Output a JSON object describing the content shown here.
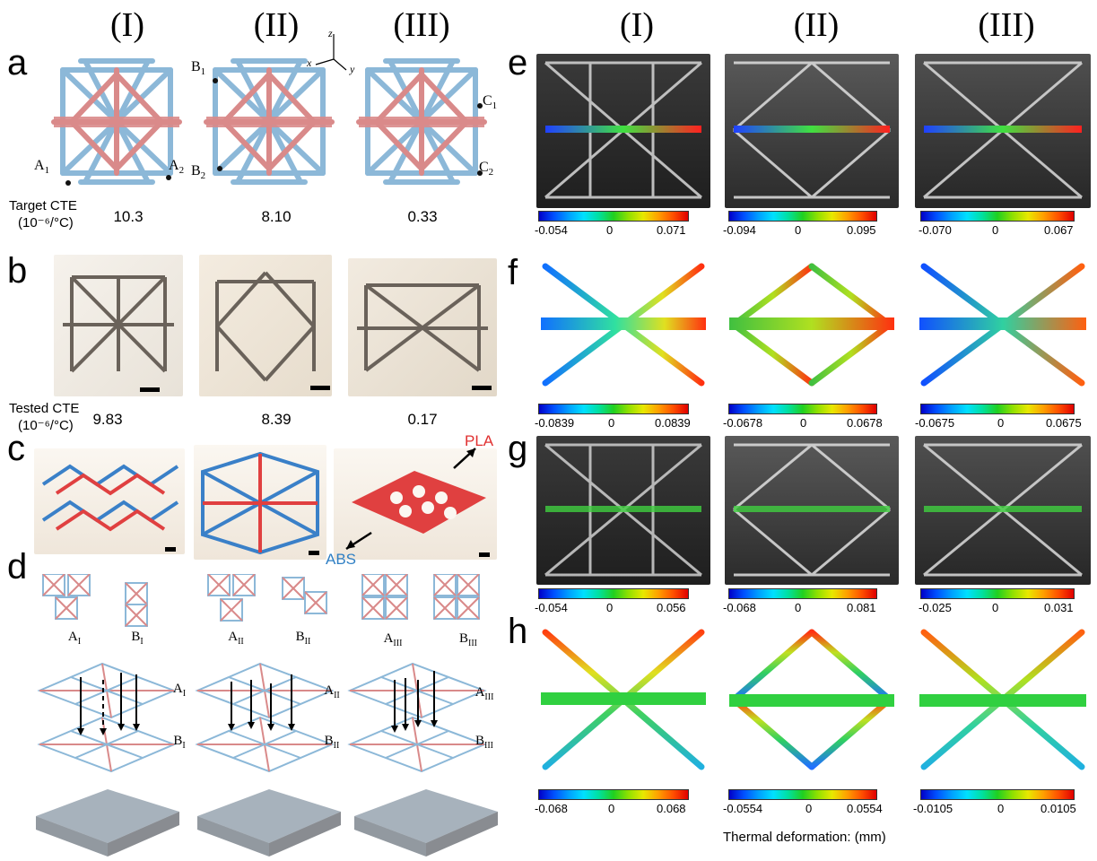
{
  "headers_left": [
    "(I)",
    "(II)",
    "(III)"
  ],
  "headers_right": [
    "(I)",
    "(II)",
    "(III)"
  ],
  "panel_labels": {
    "a": "a",
    "b": "b",
    "c": "c",
    "d": "d",
    "e": "e",
    "f": "f",
    "g": "g",
    "h": "h"
  },
  "axes": {
    "z": "z",
    "x": "x",
    "y": "y"
  },
  "node_labels": {
    "A1": "A",
    "A2": "A",
    "B1": "B",
    "B2": "B",
    "C1": "C",
    "C2": "C",
    "sub1": "1",
    "sub2": "2"
  },
  "target_cte": {
    "label": "Target CTE",
    "unit": "(10⁻⁶/°C)",
    "values": [
      "10.3",
      "8.10",
      "0.33"
    ]
  },
  "tested_cte": {
    "label": "Tested CTE",
    "unit": "(10⁻⁶/°C)",
    "values": [
      "9.83",
      "8.39",
      "0.17"
    ]
  },
  "materials": {
    "pla": "PLA",
    "abs": "ABS"
  },
  "d_labels": {
    "top": [
      {
        "main": "A",
        "sub": "I"
      },
      {
        "main": "B",
        "sub": "I"
      },
      {
        "main": "A",
        "sub": "II"
      },
      {
        "main": "B",
        "sub": "II"
      },
      {
        "main": "A",
        "sub": "III"
      },
      {
        "main": "B",
        "sub": "III"
      }
    ],
    "middle": [
      {
        "main": "A",
        "sub": "I"
      },
      {
        "main": "B",
        "sub": "I"
      },
      {
        "main": "A",
        "sub": "II"
      },
      {
        "main": "B",
        "sub": "II"
      },
      {
        "main": "A",
        "sub": "III"
      },
      {
        "main": "B",
        "sub": "III"
      }
    ]
  },
  "colorbars": {
    "e": [
      [
        "-0.054",
        "0",
        "0.071"
      ],
      [
        "-0.094",
        "0",
        "0.095"
      ],
      [
        "-0.070",
        "0",
        "0.067"
      ]
    ],
    "f": [
      [
        "-0.0839",
        "0",
        "0.0839"
      ],
      [
        "-0.0678",
        "0",
        "0.0678"
      ],
      [
        "-0.0675",
        "0",
        "0.0675"
      ]
    ],
    "g": [
      [
        "-0.054",
        "0",
        "0.056"
      ],
      [
        "-0.068",
        "0",
        "0.081"
      ],
      [
        "-0.025",
        "0",
        "0.031"
      ]
    ],
    "h": [
      [
        "-0.068",
        "0",
        "0.068"
      ],
      [
        "-0.0554",
        "0",
        "0.0554"
      ],
      [
        "-0.0105",
        "0",
        "0.0105"
      ]
    ]
  },
  "thermal_label": "Thermal deformation: (mm)",
  "colors": {
    "blue_strut": "#8cb8d8",
    "red_strut": "#d98a8a",
    "pla_red": "#e04040",
    "abs_blue": "#3a80c8"
  }
}
